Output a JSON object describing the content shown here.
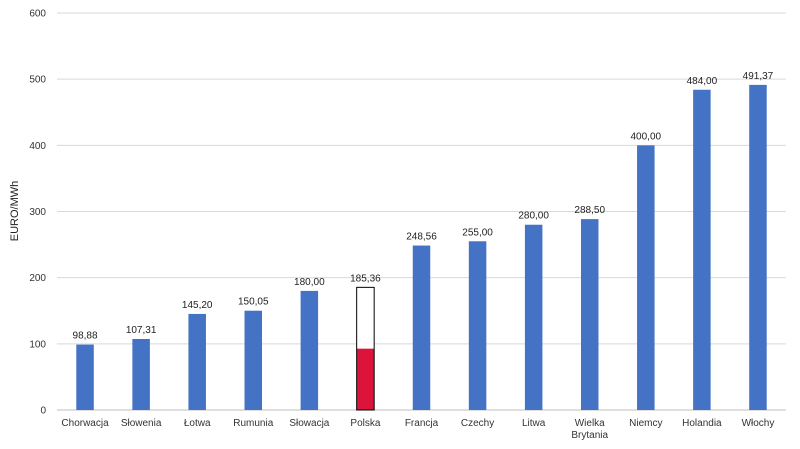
{
  "chart_data": {
    "type": "bar",
    "title": "",
    "xlabel": "",
    "ylabel": "EURO/MWh",
    "ylim": [
      0,
      600
    ],
    "yticks": [
      "0",
      "100",
      "200",
      "300",
      "400",
      "500",
      "600"
    ],
    "grid": true,
    "categories": [
      [
        "Chorwacja"
      ],
      [
        "Słowenia"
      ],
      [
        "Łotwa"
      ],
      [
        "Rumunia"
      ],
      [
        "Słowacja"
      ],
      [
        "Polska"
      ],
      [
        "Francja"
      ],
      [
        "Czechy"
      ],
      [
        "Litwa"
      ],
      [
        "Wielka",
        "Brytania"
      ],
      [
        "Niemcy"
      ],
      [
        "Holandia"
      ],
      [
        "Włochy"
      ]
    ],
    "values": [
      98.88,
      107.31,
      145.2,
      150.05,
      180.0,
      185.36,
      248.56,
      255.0,
      280.0,
      288.5,
      400.0,
      484.0,
      491.37
    ],
    "data_labels": [
      "98,88",
      "107,31",
      "145,20",
      "150,05",
      "180,00",
      "185,36",
      "248,56",
      "255,00",
      "280,00",
      "288,50",
      "400,00",
      "484,00",
      "491,37"
    ],
    "highlight": {
      "category_index": 5,
      "fill_top": "#ffffff",
      "fill_bottom": "#dc143c",
      "split_value": 92.68
    },
    "colors": {
      "bar": "#4472c4",
      "grid": "#d9d9d9",
      "axis": "#bfbfbf"
    }
  }
}
